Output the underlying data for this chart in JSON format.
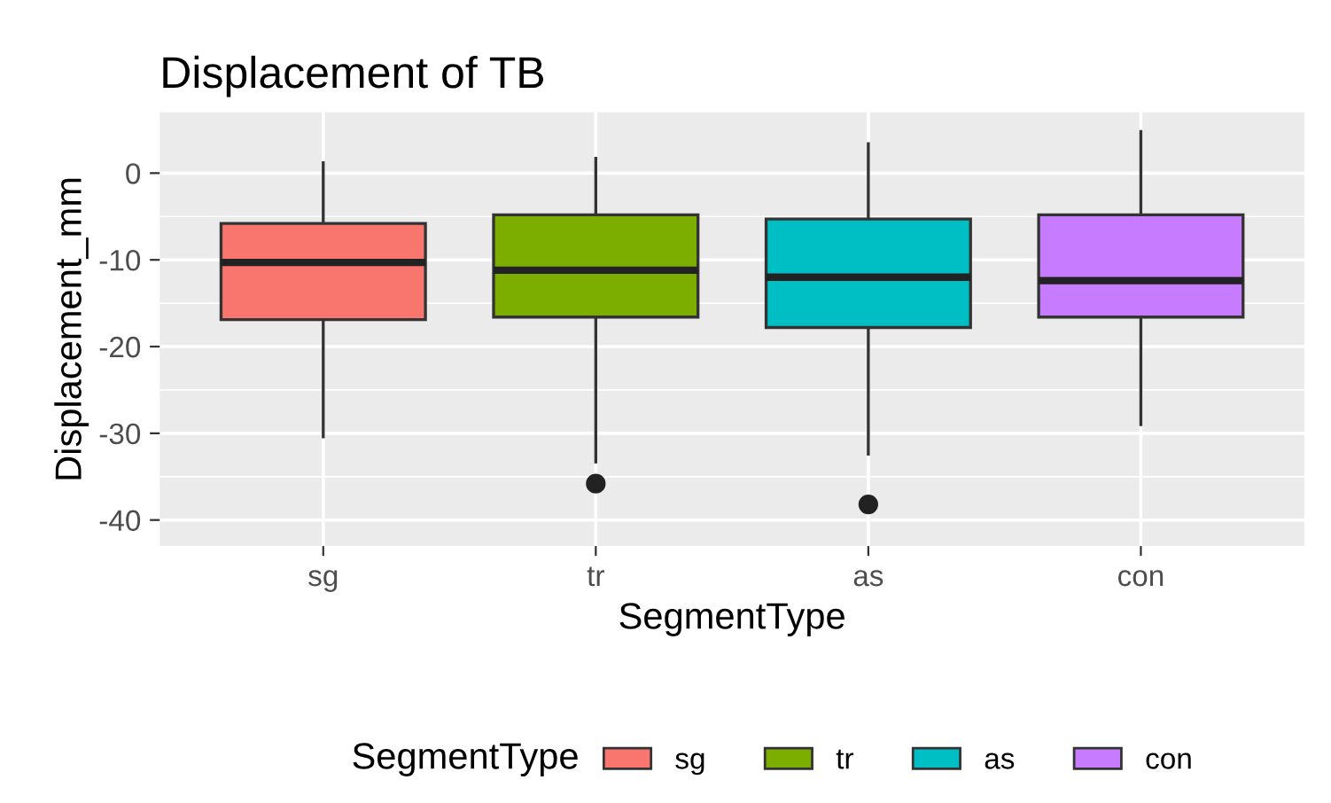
{
  "chart_data": {
    "type": "box",
    "title": "Displacement of TB",
    "xlabel": "SegmentType",
    "ylabel": "Displacement_mm",
    "legend_title": "SegmentType",
    "categories": [
      "sg",
      "tr",
      "as",
      "con"
    ],
    "series": [
      {
        "name": "sg",
        "color": "#f8766d",
        "boxes": [
          {
            "low": -30.4,
            "q1": -16.9,
            "median": -10.3,
            "q3": -5.8,
            "high": 1.2
          },
          null,
          null,
          null
        ]
      },
      {
        "name": "tr",
        "color": "#7cae00",
        "boxes": [
          null,
          {
            "low": -33.3,
            "q1": -16.6,
            "median": -11.2,
            "q3": -4.8,
            "high": 1.7,
            "outliers": [
              -35.8
            ]
          },
          null,
          null
        ]
      },
      {
        "name": "as",
        "color": "#00bfc4",
        "boxes": [
          null,
          null,
          {
            "low": -32.4,
            "q1": -17.8,
            "median": -12.0,
            "q3": -5.3,
            "high": 3.4,
            "outliers": [
              -38.2
            ]
          },
          null
        ]
      },
      {
        "name": "con",
        "color": "#c77cff",
        "boxes": [
          null,
          null,
          null,
          {
            "low": -29.0,
            "q1": -16.6,
            "median": -12.4,
            "q3": -4.8,
            "high": 4.8
          }
        ]
      }
    ],
    "ylim": [
      -43,
      7
    ],
    "yticks": [
      -40,
      -30,
      -20,
      -10,
      0
    ],
    "grid": true,
    "legend": "bottom"
  }
}
